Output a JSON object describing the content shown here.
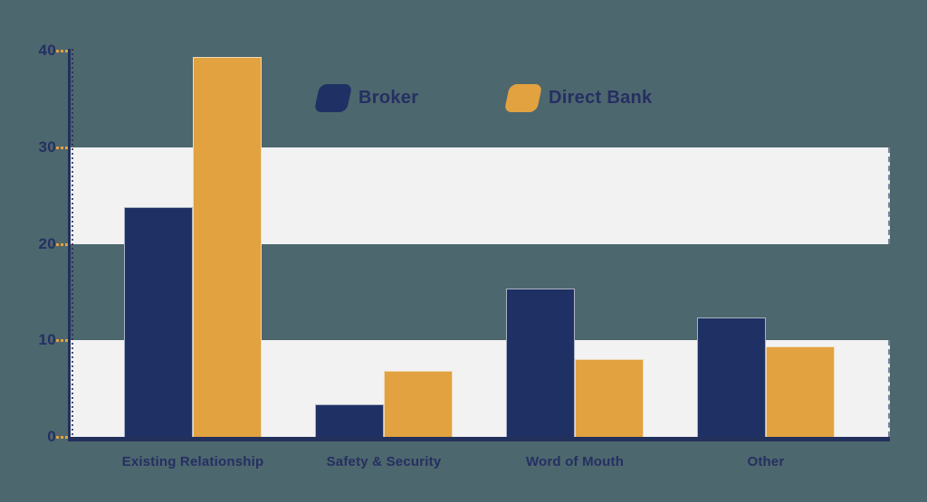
{
  "chart_data": {
    "type": "bar",
    "title": "",
    "categories": [
      "Existing Relationship",
      "Safety & Security",
      "Word of Mouth",
      "Other"
    ],
    "series": [
      {
        "name": "Broker",
        "color": "#1f3164",
        "values": [
          23.8,
          3.4,
          15.4,
          12.4
        ]
      },
      {
        "name": "Direct Bank",
        "color": "#e2a23f",
        "values": [
          39.3,
          6.8,
          8.1,
          9.4
        ]
      }
    ],
    "ylim": [
      0,
      40
    ],
    "yticks": [
      0,
      10,
      20,
      30,
      40
    ],
    "grid": "alternating horizontal white bands covering value ranges 0-10 and 20-30",
    "legend_position": "top-center"
  },
  "colors": {
    "background": "#4d676e",
    "band": "#f2f2f3",
    "axis": "#22305c",
    "tick_dash": "#e2a23f",
    "text": "#252f62"
  }
}
